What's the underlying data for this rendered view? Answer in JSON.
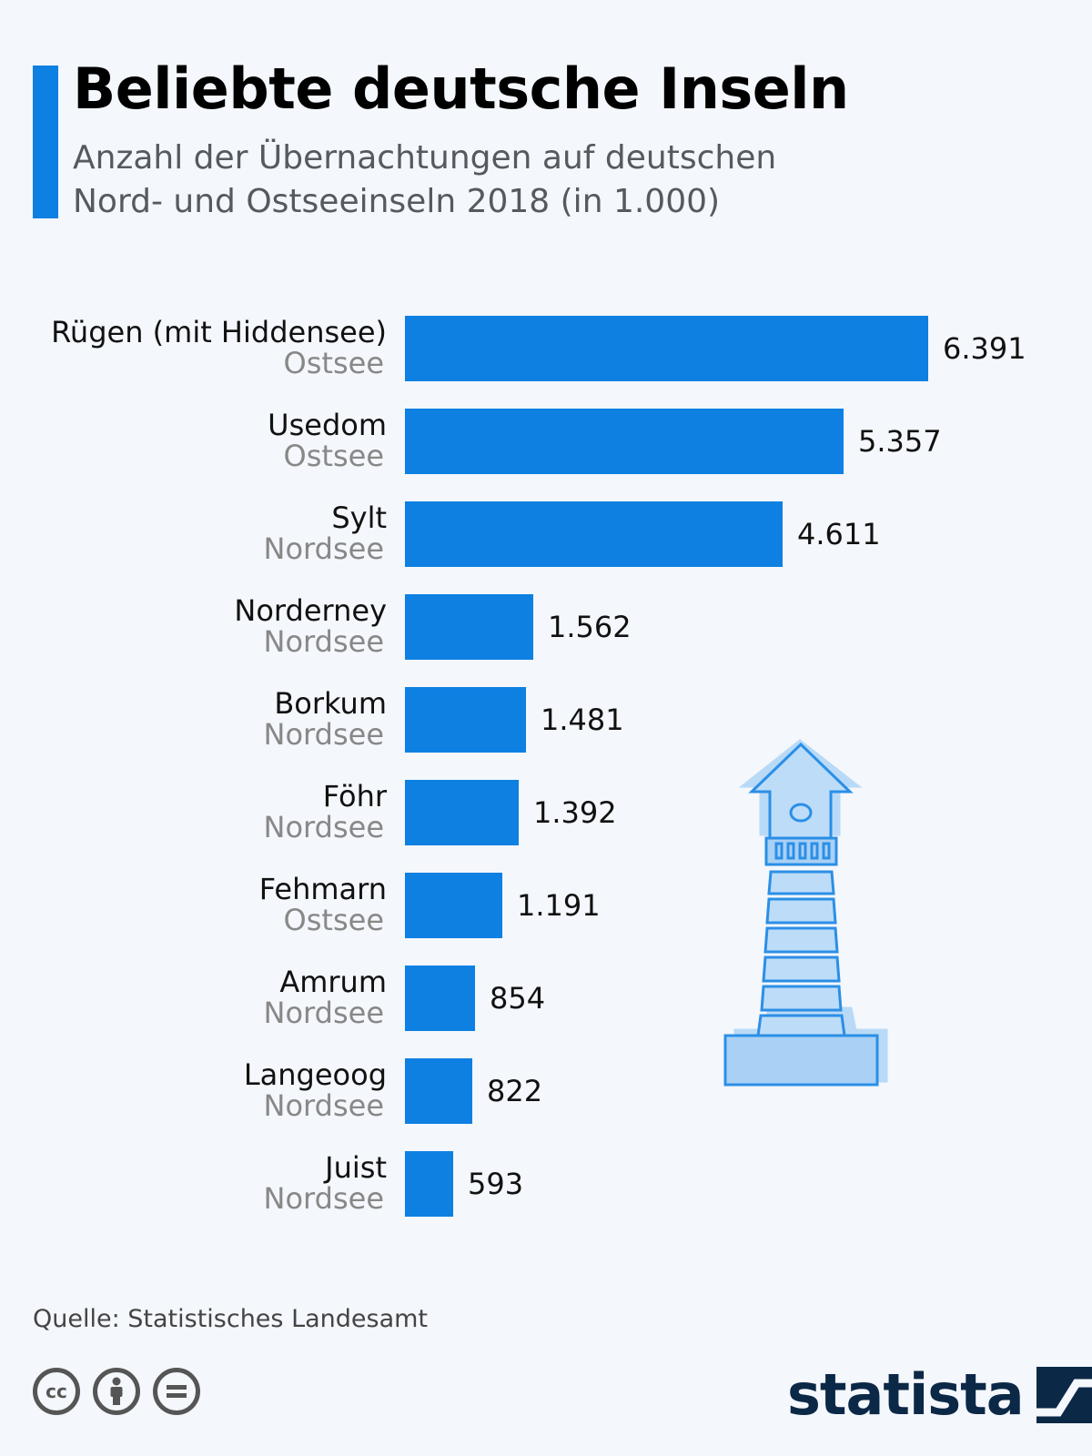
{
  "header": {
    "title": "Beliebte deutsche Inseln",
    "subtitle_line1": "Anzahl der Übernachtungen auf deutschen",
    "subtitle_line2": "Nord- und Ostseeinseln 2018 (in 1.000)"
  },
  "chart_data": {
    "type": "bar",
    "orientation": "horizontal",
    "title": "Beliebte deutsche Inseln",
    "subtitle": "Anzahl der Übernachtungen auf deutschen Nord- und Ostseeinseln 2018 (in 1.000)",
    "categories": [
      "Rügen (mit Hiddensee)",
      "Usedom",
      "Sylt",
      "Norderney",
      "Borkum",
      "Föhr",
      "Fehmarn",
      "Amrum",
      "Langeoog",
      "Juist"
    ],
    "sublabels": [
      "Ostsee",
      "Ostsee",
      "Nordsee",
      "Nordsee",
      "Nordsee",
      "Nordsee",
      "Ostsee",
      "Nordsee",
      "Nordsee",
      "Nordsee"
    ],
    "values": [
      6391,
      5357,
      4611,
      1562,
      1481,
      1392,
      1191,
      854,
      822,
      593
    ],
    "value_labels": [
      "6.391",
      "5.357",
      "4.611",
      "1.562",
      "1.481",
      "1.392",
      "1.191",
      "854",
      "822",
      "593"
    ],
    "xlim": [
      0,
      6391
    ],
    "grid": false,
    "bar_color": "#0d80e2"
  },
  "footer": {
    "source": "Quelle: Statistisches Landesamt",
    "license_icons": [
      "cc-icon",
      "by-icon",
      "nd-icon"
    ],
    "cc_label": "cc",
    "logo_text": "statista"
  },
  "colors": {
    "accent": "#0d80e2",
    "background": "#f4f7fb",
    "sublabel": "#888888",
    "lighthouse_fill": "#a9d0f5",
    "lighthouse_stroke": "#2b8fe6",
    "brand_navy": "#0c2847"
  }
}
